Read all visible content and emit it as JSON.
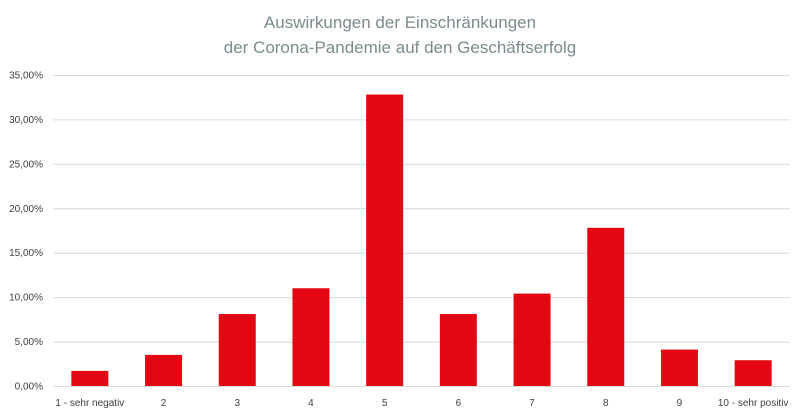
{
  "chart_data": {
    "type": "bar",
    "title": "Auswirkungen der Einschränkungen",
    "subtitle": "der Corona-Pandemie auf den Geschäftserfolg",
    "xlabel": "",
    "ylabel": "",
    "categories": [
      "1 - sehr negativ",
      "2",
      "3",
      "4",
      "5",
      "6",
      "7",
      "8",
      "9",
      "10 - sehr positiv"
    ],
    "values": [
      1.7,
      3.5,
      8.1,
      11.0,
      32.8,
      8.1,
      10.4,
      17.8,
      4.1,
      2.9
    ],
    "ylim": [
      0,
      35
    ],
    "yticks": [
      0,
      5,
      10,
      15,
      20,
      25,
      30,
      35
    ],
    "ytick_labels": [
      "0,00%",
      "5,00%",
      "10,00%",
      "15,00%",
      "20,00%",
      "25,00%",
      "30,00%",
      "35,00%"
    ],
    "grid": true,
    "legend": "none",
    "colors": {
      "bar": "#e30613",
      "grid": "#d9d9d9",
      "title": "#7b8b8e",
      "tick_text": "#404040"
    }
  }
}
